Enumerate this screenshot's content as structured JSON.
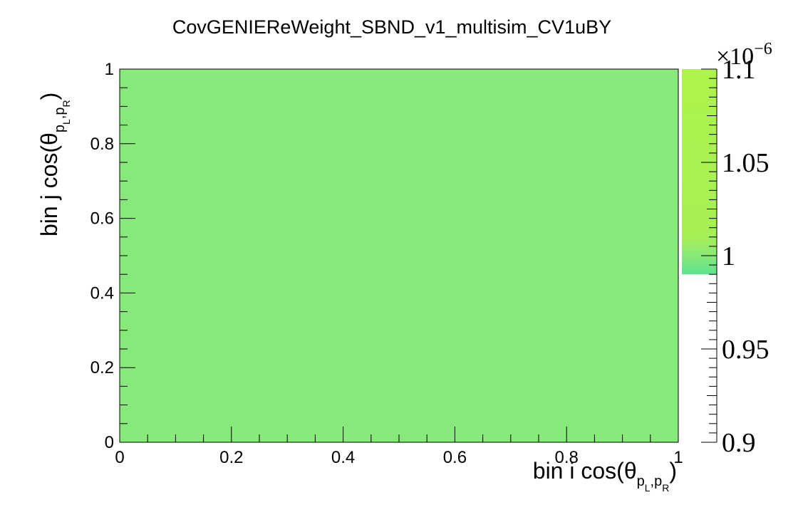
{
  "chart_data": {
    "type": "heatmap",
    "title": "CovGENIEReWeight_SBND_v1_multisim_CV1uBY",
    "xlabel": {
      "main": "bin i cos(θ",
      "sub1": "p",
      "sub1_sub": "L",
      "comma": ",",
      "sub2": "p",
      "sub2_sub": "R",
      "close": ")"
    },
    "ylabel": {
      "main": "bin j cos(θ",
      "sub1": "p",
      "sub1_sub": "L",
      "comma": ",",
      "sub2": "p",
      "sub2_sub": "R",
      "close": ")"
    },
    "x": {
      "range": [
        0,
        1
      ],
      "ticks": [
        0,
        0.2,
        0.4,
        0.6,
        0.8,
        1
      ],
      "tick_labels": [
        "0",
        "0.2",
        "0.4",
        "0.6",
        "0.8",
        "1"
      ]
    },
    "y": {
      "range": [
        0,
        1
      ],
      "ticks": [
        0,
        0.2,
        0.4,
        0.6,
        0.8,
        1
      ],
      "tick_labels": [
        "0",
        "0.2",
        "0.4",
        "0.6",
        "0.8",
        "1"
      ]
    },
    "cells": [
      {
        "x": [
          0,
          1
        ],
        "y": [
          0,
          1
        ],
        "value": 1e-06
      }
    ],
    "colorbar": {
      "range": [
        0.9,
        1.1
      ],
      "ticks": [
        0.9,
        0.95,
        1,
        1.05,
        1.1
      ],
      "tick_labels": [
        "0.9",
        "0.95",
        "1",
        "1.05",
        "1.1"
      ],
      "exponent_base": "×10",
      "exponent_power": "−6",
      "filled_from": 0.99,
      "gradient": [
        {
          "v": 0.99,
          "color": "#5ce390"
        },
        {
          "v": 1.0,
          "color": "#89e97a"
        },
        {
          "v": 1.01,
          "color": "#a6f055"
        },
        {
          "v": 1.1,
          "color": "#adf44a"
        }
      ]
    },
    "cell_color": "#87e97a",
    "grid": false,
    "legend": "none"
  }
}
